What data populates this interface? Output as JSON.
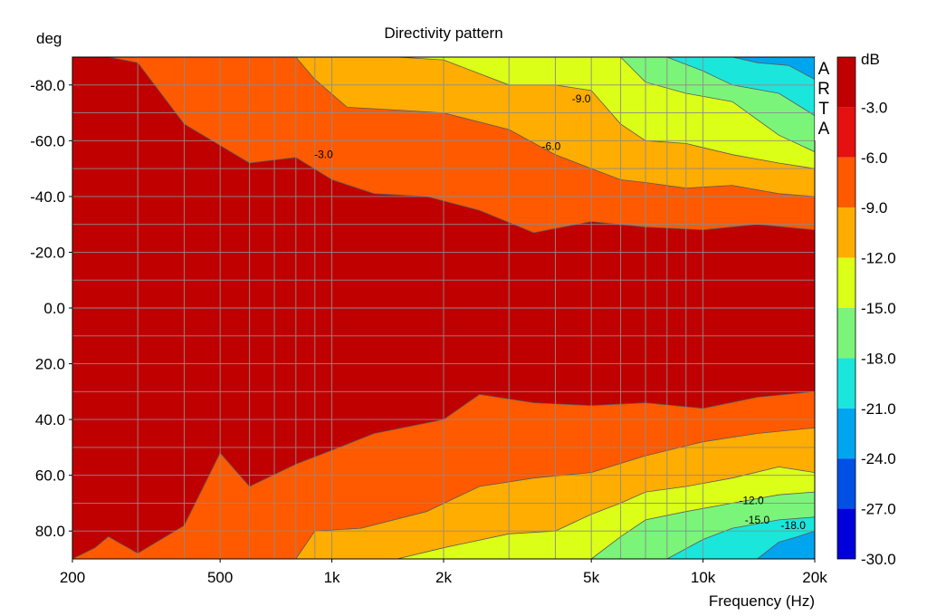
{
  "chart_data": {
    "type": "heatmap",
    "title": "Directivity pattern",
    "xlabel": "Frequency (Hz)",
    "ylabel": "deg",
    "xscale": "log",
    "xlim": [
      200,
      20000
    ],
    "ylim": [
      -90,
      90
    ],
    "x_ticks": [
      {
        "value": 200,
        "label": "200"
      },
      {
        "value": 500,
        "label": "500"
      },
      {
        "value": 1000,
        "label": "1k"
      },
      {
        "value": 2000,
        "label": "2k"
      },
      {
        "value": 5000,
        "label": "5k"
      },
      {
        "value": 10000,
        "label": "10k"
      },
      {
        "value": 20000,
        "label": "20k"
      }
    ],
    "y_ticks": [
      {
        "value": -80,
        "label": "-80.0"
      },
      {
        "value": -60,
        "label": "-60.0"
      },
      {
        "value": -40,
        "label": "-40.0"
      },
      {
        "value": -20,
        "label": "-20.0"
      },
      {
        "value": 0,
        "label": "0.0"
      },
      {
        "value": 20,
        "label": "20.0"
      },
      {
        "value": 40,
        "label": "40.0"
      },
      {
        "value": 60,
        "label": "60.0"
      },
      {
        "value": 80,
        "label": "80.0"
      }
    ],
    "grid": true,
    "colorbar": {
      "unit": "dB",
      "range": [
        -30,
        0
      ],
      "bands": [
        {
          "label": "-3.0",
          "color": "#c00000"
        },
        {
          "label": "-6.0",
          "color": "#e51010"
        },
        {
          "label": "-9.0",
          "color": "#ff5a00"
        },
        {
          "label": "-12.0",
          "color": "#ffad00"
        },
        {
          "label": "-15.0",
          "color": "#dcff17"
        },
        {
          "label": "-18.0",
          "color": "#7af57a"
        },
        {
          "label": "-21.0",
          "color": "#1ae6dc"
        },
        {
          "label": "-24.0",
          "color": "#00a5f0"
        },
        {
          "label": "-27.0",
          "color": "#0050e6"
        },
        {
          "label": "-30.0",
          "color": "#0000dc"
        }
      ]
    },
    "contour_labels": [
      {
        "text": "-3.0",
        "freq": 950,
        "deg": -55
      },
      {
        "text": "-6.0",
        "freq": 3900,
        "deg": -58
      },
      {
        "text": "-9.0",
        "freq": 4700,
        "deg": -75
      },
      {
        "text": "-12.0",
        "freq": 13500,
        "deg": 69
      },
      {
        "text": "-15.0",
        "freq": 14000,
        "deg": 76
      },
      {
        "text": "-18.0",
        "freq": 17500,
        "deg": 78
      }
    ],
    "contours_negative_side": [
      {
        "level": -3,
        "freq": [
          200,
          250,
          300,
          400,
          600,
          800,
          1000,
          1300,
          1800,
          2500,
          3500,
          5000,
          7000,
          10000,
          14000,
          20000
        ],
        "deg": [
          -90,
          -90,
          -88,
          -66,
          -52,
          -54,
          -46,
          -41,
          -40,
          -35,
          -27,
          -31,
          -29,
          -28,
          -30,
          -28
        ]
      },
      {
        "level": -6,
        "freq": [
          800,
          900,
          1100,
          1500,
          2000,
          3000,
          4000,
          5000,
          6000,
          7000,
          9000,
          12000,
          16000,
          20000
        ],
        "deg": [
          -90,
          -82,
          -72,
          -71,
          -70,
          -64,
          -55,
          -50,
          -46,
          -45,
          -43,
          -44,
          -41,
          -40
        ]
      },
      {
        "level": -9,
        "freq": [
          1500,
          2000,
          3000,
          4000,
          5000,
          6000,
          7000,
          9000,
          12000,
          16000,
          20000
        ],
        "deg": [
          -90,
          -89,
          -80,
          -80,
          -78,
          -66,
          -60,
          -59,
          -55,
          -52,
          -50
        ]
      },
      {
        "level": -12,
        "freq": [
          6000,
          7000,
          9000,
          12000,
          16000,
          20000
        ],
        "deg": [
          -90,
          -81,
          -77,
          -74,
          -62,
          -56
        ]
      },
      {
        "level": -15,
        "freq": [
          8000,
          10000,
          12000,
          16000,
          20000
        ],
        "deg": [
          -90,
          -85,
          -80,
          -77,
          -69
        ]
      },
      {
        "level": -18,
        "freq": [
          10000,
          12000,
          14000,
          17000,
          20000
        ],
        "deg": [
          -90,
          -90,
          -88,
          -87,
          -82
        ]
      }
    ],
    "contours_positive_side": [
      {
        "level": -3,
        "freq": [
          200,
          230,
          250,
          300,
          400,
          500,
          600,
          800,
          1000,
          1300,
          2000,
          2500,
          3500,
          5000,
          7000,
          10000,
          14000,
          20000
        ],
        "deg": [
          90,
          86,
          82,
          88,
          78,
          52,
          64,
          56,
          51,
          45,
          40,
          31,
          34,
          35,
          34,
          36,
          32,
          30
        ]
      },
      {
        "level": -6,
        "freq": [
          800,
          900,
          1200,
          1800,
          2500,
          3500,
          5000,
          7000,
          10000,
          14000,
          20000
        ],
        "deg": [
          90,
          80,
          79,
          73,
          64,
          61,
          59,
          53,
          48,
          45,
          43
        ]
      },
      {
        "level": -9,
        "freq": [
          1500,
          2000,
          3000,
          4000,
          5000,
          6000,
          7000,
          9000,
          12000,
          16000,
          20000
        ],
        "deg": [
          90,
          86,
          81,
          80,
          74,
          70,
          66,
          64,
          61,
          57,
          59
        ]
      },
      {
        "level": -12,
        "freq": [
          5000,
          6000,
          7000,
          9000,
          12000,
          16000,
          20000
        ],
        "deg": [
          90,
          82,
          76,
          73,
          70,
          67,
          66
        ]
      },
      {
        "level": -15,
        "freq": [
          8000,
          10000,
          12000,
          16000,
          20000
        ],
        "deg": [
          90,
          83,
          79,
          76,
          75
        ]
      },
      {
        "level": -18,
        "freq": [
          14000,
          16000,
          18000,
          20000
        ],
        "deg": [
          90,
          84,
          82,
          80
        ]
      }
    ]
  },
  "legend": {
    "brand": [
      "A",
      "R",
      "T",
      "A"
    ]
  }
}
